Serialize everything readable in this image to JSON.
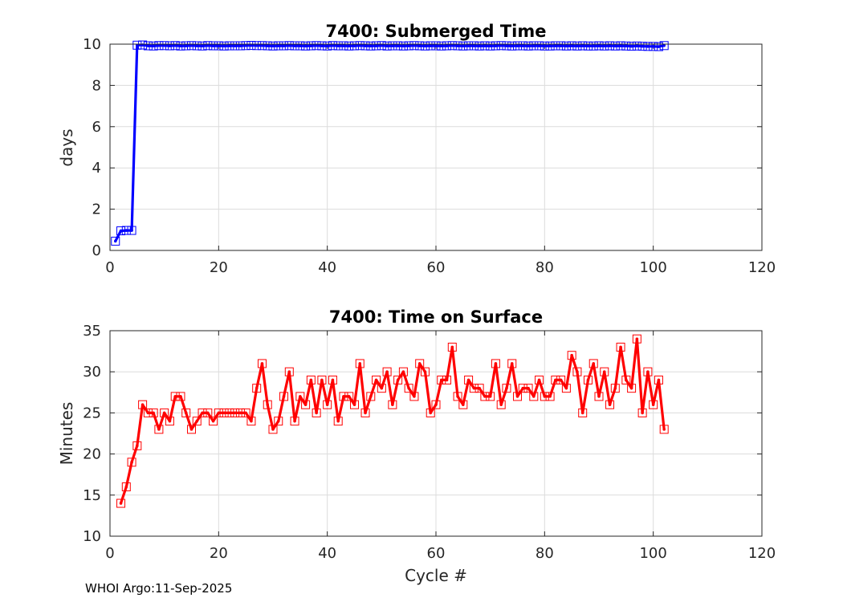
{
  "footer_text": "WHOI Argo:11-Sep-2025",
  "chart_data": [
    {
      "type": "line",
      "title": "7400: Submerged Time",
      "xlabel": "",
      "ylabel": "days",
      "xlim": [
        0,
        120
      ],
      "ylim": [
        0,
        10
      ],
      "xticks": [
        0,
        20,
        40,
        60,
        80,
        100,
        120
      ],
      "yticks": [
        0,
        2,
        4,
        6,
        8,
        10
      ],
      "grid": true,
      "color": "#0000ff",
      "series": [
        {
          "name": "Submerged Time",
          "x": [
            1,
            2,
            3,
            4,
            5,
            6,
            7,
            8,
            9,
            10,
            11,
            12,
            13,
            14,
            15,
            16,
            17,
            18,
            19,
            20,
            21,
            22,
            23,
            24,
            25,
            26,
            27,
            28,
            29,
            30,
            31,
            32,
            33,
            34,
            35,
            36,
            37,
            38,
            39,
            40,
            41,
            42,
            43,
            44,
            45,
            46,
            47,
            48,
            49,
            50,
            51,
            52,
            53,
            54,
            55,
            56,
            57,
            58,
            59,
            60,
            61,
            62,
            63,
            64,
            65,
            66,
            67,
            68,
            69,
            70,
            71,
            72,
            73,
            74,
            75,
            76,
            77,
            78,
            79,
            80,
            81,
            82,
            83,
            84,
            85,
            86,
            87,
            88,
            89,
            90,
            91,
            92,
            93,
            94,
            95,
            96,
            97,
            98,
            99,
            100,
            101,
            102
          ],
          "values": [
            0.45,
            0.95,
            0.97,
            0.97,
            9.95,
            9.96,
            9.92,
            9.91,
            9.93,
            9.93,
            9.92,
            9.93,
            9.91,
            9.92,
            9.93,
            9.92,
            9.91,
            9.93,
            9.92,
            9.92,
            9.91,
            9.92,
            9.92,
            9.92,
            9.93,
            9.94,
            9.93,
            9.93,
            9.92,
            9.91,
            9.92,
            9.92,
            9.93,
            9.92,
            9.92,
            9.91,
            9.92,
            9.93,
            9.92,
            9.91,
            9.93,
            9.92,
            9.92,
            9.91,
            9.92,
            9.93,
            9.92,
            9.91,
            9.92,
            9.93,
            9.91,
            9.92,
            9.92,
            9.91,
            9.92,
            9.93,
            9.92,
            9.91,
            9.92,
            9.92,
            9.91,
            9.92,
            9.93,
            9.92,
            9.91,
            9.92,
            9.92,
            9.91,
            9.92,
            9.91,
            9.92,
            9.93,
            9.92,
            9.91,
            9.92,
            9.92,
            9.91,
            9.92,
            9.92,
            9.91,
            9.91,
            9.92,
            9.92,
            9.91,
            9.92,
            9.91,
            9.92,
            9.91,
            9.91,
            9.92,
            9.91,
            9.92,
            9.91,
            9.92,
            9.91,
            9.9,
            9.91,
            9.9,
            9.89,
            9.89,
            9.88,
            9.93
          ]
        }
      ]
    },
    {
      "type": "line",
      "title": "7400: Time on Surface",
      "xlabel": "Cycle #",
      "ylabel": "Minutes",
      "xlim": [
        0,
        120
      ],
      "ylim": [
        10,
        35
      ],
      "xticks": [
        0,
        20,
        40,
        60,
        80,
        100,
        120
      ],
      "yticks": [
        10,
        15,
        20,
        25,
        30,
        35
      ],
      "grid": true,
      "color": "#ff0000",
      "series": [
        {
          "name": "Time on Surface",
          "x": [
            2,
            3,
            4,
            5,
            6,
            7,
            8,
            9,
            10,
            11,
            12,
            13,
            14,
            15,
            16,
            17,
            18,
            19,
            20,
            21,
            22,
            23,
            24,
            25,
            26,
            27,
            28,
            29,
            30,
            31,
            32,
            33,
            34,
            35,
            36,
            37,
            38,
            39,
            40,
            41,
            42,
            43,
            44,
            45,
            46,
            47,
            48,
            49,
            50,
            51,
            52,
            53,
            54,
            55,
            56,
            57,
            58,
            59,
            60,
            61,
            62,
            63,
            64,
            65,
            66,
            67,
            68,
            69,
            70,
            71,
            72,
            73,
            74,
            75,
            76,
            77,
            78,
            79,
            80,
            81,
            82,
            83,
            84,
            85,
            86,
            87,
            88,
            89,
            90,
            91,
            92,
            93,
            94,
            95,
            96,
            97,
            98,
            99,
            100,
            101,
            102
          ],
          "values": [
            14,
            16,
            19,
            21,
            26,
            25,
            25,
            23,
            25,
            24,
            27,
            27,
            25,
            23,
            24,
            25,
            25,
            24,
            25,
            25,
            25,
            25,
            25,
            25,
            24,
            28,
            31,
            26,
            23,
            24,
            27,
            30,
            24,
            27,
            26,
            29,
            25,
            29,
            26,
            29,
            24,
            27,
            27,
            26,
            31,
            25,
            27,
            29,
            28,
            30,
            26,
            29,
            30,
            28,
            27,
            31,
            30,
            25,
            26,
            29,
            29,
            33,
            27,
            26,
            29,
            28,
            28,
            27,
            27,
            31,
            26,
            28,
            31,
            27,
            28,
            28,
            27,
            29,
            27,
            27,
            29,
            29,
            28,
            32,
            30,
            25,
            29,
            31,
            27,
            30,
            26,
            28,
            33,
            29,
            28,
            34,
            25,
            30,
            26,
            29,
            23
          ]
        }
      ]
    }
  ]
}
